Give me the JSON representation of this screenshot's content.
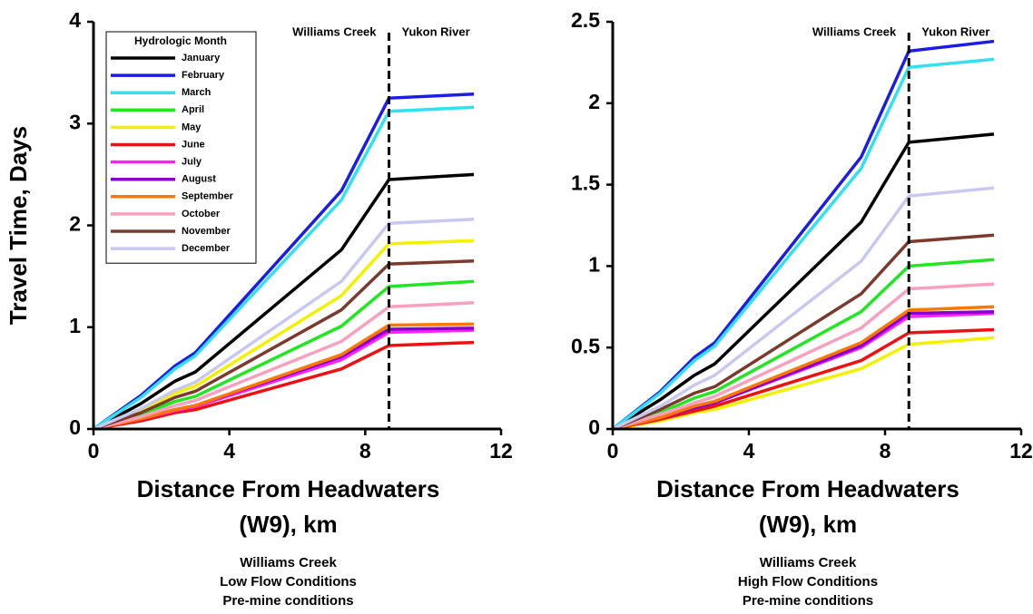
{
  "chart_data": [
    {
      "type": "line",
      "ylabel": "Travel Time, Days",
      "xlabel": [
        "Distance From Headwaters",
        "(W9), km"
      ],
      "caption": [
        "Williams Creek",
        "Low Flow Conditions",
        "Pre-mine conditions"
      ],
      "annotations": [
        "Williams Creek",
        "Yukon River"
      ],
      "divider_x": 8.7,
      "legend_title": "Hydrologic Month",
      "legend": "upper left",
      "xlim": [
        0,
        12
      ],
      "xticks": [
        0,
        4,
        8,
        12
      ],
      "ylim": [
        0,
        4
      ],
      "yticks": [
        0,
        1,
        2,
        3,
        4
      ],
      "x": [
        0,
        1.4,
        2.4,
        3.0,
        7.3,
        8.7,
        11.2
      ],
      "series": [
        {
          "name": "January",
          "color": "#000000",
          "values": [
            0,
            0.25,
            0.47,
            0.56,
            1.76,
            2.45,
            2.5
          ]
        },
        {
          "name": "February",
          "color": "#1c1ce6",
          "values": [
            0,
            0.33,
            0.62,
            0.75,
            2.34,
            3.25,
            3.29
          ]
        },
        {
          "name": "March",
          "color": "#33e0f0",
          "values": [
            0,
            0.31,
            0.59,
            0.72,
            2.25,
            3.12,
            3.16
          ]
        },
        {
          "name": "April",
          "color": "#22e622",
          "values": [
            0,
            0.14,
            0.27,
            0.32,
            1.01,
            1.4,
            1.45
          ]
        },
        {
          "name": "May",
          "color": "#f2f200",
          "values": [
            0,
            0.18,
            0.35,
            0.42,
            1.31,
            1.82,
            1.85
          ]
        },
        {
          "name": "June",
          "color": "#ee1111",
          "values": [
            0,
            0.08,
            0.16,
            0.19,
            0.59,
            0.82,
            0.85
          ]
        },
        {
          "name": "July",
          "color": "#ff22ff",
          "values": [
            0,
            0.1,
            0.18,
            0.22,
            0.68,
            0.95,
            0.97
          ]
        },
        {
          "name": "August",
          "color": "#8800cc",
          "values": [
            0,
            0.1,
            0.19,
            0.23,
            0.71,
            0.98,
            0.99
          ]
        },
        {
          "name": "September",
          "color": "#ff7700",
          "values": [
            0,
            0.1,
            0.19,
            0.23,
            0.73,
            1.02,
            1.03
          ]
        },
        {
          "name": "October",
          "color": "#f7a0c0",
          "values": [
            0,
            0.12,
            0.23,
            0.28,
            0.86,
            1.2,
            1.24
          ]
        },
        {
          "name": "November",
          "color": "#7a3b2e",
          "values": [
            0,
            0.16,
            0.31,
            0.37,
            1.17,
            1.62,
            1.65
          ]
        },
        {
          "name": "December",
          "color": "#c8c8f0",
          "values": [
            0,
            0.2,
            0.38,
            0.46,
            1.45,
            2.02,
            2.06
          ]
        }
      ]
    },
    {
      "type": "line",
      "xlabel": [
        "Distance From Headwaters",
        "(W9), km"
      ],
      "caption": [
        "Williams Creek",
        "High Flow Conditions",
        "Pre-mine conditions"
      ],
      "annotations": [
        "Williams Creek",
        "Yukon River"
      ],
      "divider_x": 8.7,
      "xlim": [
        0,
        12
      ],
      "xticks": [
        0,
        4,
        8,
        12
      ],
      "ylim": [
        0,
        2.5
      ],
      "yticks": [
        0,
        0.5,
        1,
        1.5,
        2,
        2.5
      ],
      "x": [
        0,
        1.4,
        2.4,
        3.0,
        7.3,
        8.7,
        11.2
      ],
      "series": [
        {
          "name": "January",
          "color": "#000000",
          "values": [
            0,
            0.18,
            0.33,
            0.4,
            1.27,
            1.76,
            1.81
          ]
        },
        {
          "name": "February",
          "color": "#1c1ce6",
          "values": [
            0,
            0.23,
            0.44,
            0.53,
            1.67,
            2.32,
            2.38
          ]
        },
        {
          "name": "March",
          "color": "#33e0f0",
          "values": [
            0,
            0.22,
            0.42,
            0.51,
            1.6,
            2.22,
            2.27
          ]
        },
        {
          "name": "April",
          "color": "#22e622",
          "values": [
            0,
            0.1,
            0.19,
            0.23,
            0.72,
            1.0,
            1.04
          ]
        },
        {
          "name": "May",
          "color": "#f2f200",
          "values": [
            0,
            0.05,
            0.1,
            0.12,
            0.37,
            0.52,
            0.56
          ]
        },
        {
          "name": "June",
          "color": "#ee1111",
          "values": [
            0,
            0.06,
            0.11,
            0.14,
            0.42,
            0.59,
            0.61
          ]
        },
        {
          "name": "July",
          "color": "#ff22ff",
          "values": [
            0,
            0.07,
            0.13,
            0.16,
            0.5,
            0.69,
            0.71
          ]
        },
        {
          "name": "August",
          "color": "#8800cc",
          "values": [
            0,
            0.07,
            0.13,
            0.16,
            0.51,
            0.71,
            0.72
          ]
        },
        {
          "name": "September",
          "color": "#ff7700",
          "values": [
            0,
            0.07,
            0.14,
            0.17,
            0.53,
            0.73,
            0.75
          ]
        },
        {
          "name": "October",
          "color": "#f7a0c0",
          "values": [
            0,
            0.09,
            0.16,
            0.2,
            0.62,
            0.86,
            0.89
          ]
        },
        {
          "name": "November",
          "color": "#7a3b2e",
          "values": [
            0,
            0.12,
            0.22,
            0.26,
            0.83,
            1.15,
            1.19
          ]
        },
        {
          "name": "December",
          "color": "#c8c8f0",
          "values": [
            0,
            0.14,
            0.27,
            0.33,
            1.03,
            1.43,
            1.48
          ]
        }
      ]
    }
  ]
}
